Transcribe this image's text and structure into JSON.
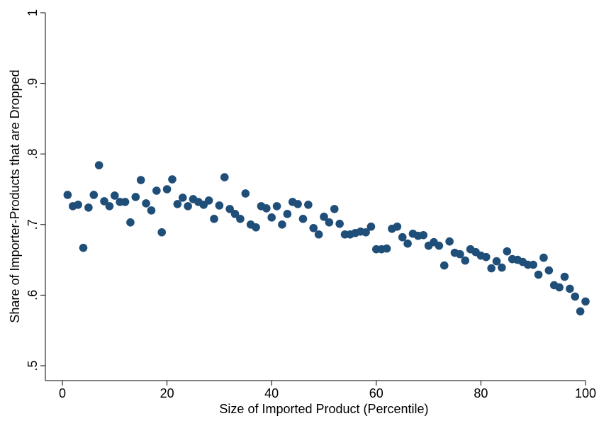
{
  "chart_data": {
    "type": "scatter",
    "xlabel": "Size of Imported Product (Percentile)",
    "ylabel": "Share of Importer-Products that are Dropped",
    "xlim": [
      0,
      100
    ],
    "ylim": [
      0.5,
      1.0
    ],
    "xticks": [
      0,
      20,
      40,
      60,
      80,
      100
    ],
    "xtick_labels": [
      "0",
      "20",
      "40",
      "60",
      "80",
      "100"
    ],
    "yticks": [
      0.5,
      0.6,
      0.7,
      0.8,
      0.9,
      1.0
    ],
    "ytick_labels": [
      ".5",
      ".6",
      ".7",
      ".8",
      ".9",
      "1"
    ],
    "grid": false,
    "marker_color": "#1f4e79",
    "series": [
      {
        "points": [
          [
            1,
            0.742
          ],
          [
            2,
            0.726
          ],
          [
            3,
            0.728
          ],
          [
            4,
            0.667
          ],
          [
            5,
            0.724
          ],
          [
            6,
            0.742
          ],
          [
            7,
            0.784
          ],
          [
            8,
            0.733
          ],
          [
            9,
            0.726
          ],
          [
            10,
            0.741
          ],
          [
            11,
            0.732
          ],
          [
            12,
            0.732
          ],
          [
            13,
            0.703
          ],
          [
            14,
            0.739
          ],
          [
            15,
            0.763
          ],
          [
            16,
            0.73
          ],
          [
            17,
            0.72
          ],
          [
            18,
            0.748
          ],
          [
            19,
            0.689
          ],
          [
            20,
            0.75
          ],
          [
            21,
            0.764
          ],
          [
            22,
            0.729
          ],
          [
            23,
            0.738
          ],
          [
            24,
            0.726
          ],
          [
            25,
            0.736
          ],
          [
            26,
            0.732
          ],
          [
            27,
            0.728
          ],
          [
            28,
            0.734
          ],
          [
            29,
            0.708
          ],
          [
            30,
            0.727
          ],
          [
            31,
            0.767
          ],
          [
            32,
            0.722
          ],
          [
            33,
            0.715
          ],
          [
            34,
            0.708
          ],
          [
            35,
            0.744
          ],
          [
            36,
            0.7
          ],
          [
            37,
            0.696
          ],
          [
            38,
            0.726
          ],
          [
            39,
            0.723
          ],
          [
            40,
            0.71
          ],
          [
            41,
            0.726
          ],
          [
            42,
            0.7
          ],
          [
            43,
            0.715
          ],
          [
            44,
            0.732
          ],
          [
            45,
            0.729
          ],
          [
            46,
            0.708
          ],
          [
            47,
            0.728
          ],
          [
            48,
            0.695
          ],
          [
            49,
            0.686
          ],
          [
            50,
            0.711
          ],
          [
            51,
            0.703
          ],
          [
            52,
            0.722
          ],
          [
            53,
            0.701
          ],
          [
            54,
            0.686
          ],
          [
            55,
            0.686
          ],
          [
            56,
            0.688
          ],
          [
            57,
            0.69
          ],
          [
            58,
            0.689
          ],
          [
            59,
            0.697
          ],
          [
            60,
            0.665
          ],
          [
            61,
            0.665
          ],
          [
            62,
            0.666
          ],
          [
            63,
            0.694
          ],
          [
            64,
            0.697
          ],
          [
            65,
            0.682
          ],
          [
            66,
            0.673
          ],
          [
            67,
            0.687
          ],
          [
            68,
            0.684
          ],
          [
            69,
            0.685
          ],
          [
            70,
            0.67
          ],
          [
            71,
            0.675
          ],
          [
            72,
            0.67
          ],
          [
            73,
            0.642
          ],
          [
            74,
            0.676
          ],
          [
            75,
            0.66
          ],
          [
            76,
            0.658
          ],
          [
            77,
            0.649
          ],
          [
            78,
            0.665
          ],
          [
            79,
            0.661
          ],
          [
            80,
            0.656
          ],
          [
            81,
            0.654
          ],
          [
            82,
            0.638
          ],
          [
            83,
            0.648
          ],
          [
            84,
            0.639
          ],
          [
            85,
            0.662
          ],
          [
            86,
            0.651
          ],
          [
            87,
            0.65
          ],
          [
            88,
            0.647
          ],
          [
            89,
            0.643
          ],
          [
            90,
            0.643
          ],
          [
            91,
            0.629
          ],
          [
            92,
            0.653
          ],
          [
            93,
            0.635
          ],
          [
            94,
            0.614
          ],
          [
            95,
            0.611
          ],
          [
            96,
            0.626
          ],
          [
            97,
            0.609
          ],
          [
            98,
            0.598
          ],
          [
            99,
            0.577
          ],
          [
            100,
            0.591
          ]
        ]
      }
    ]
  }
}
